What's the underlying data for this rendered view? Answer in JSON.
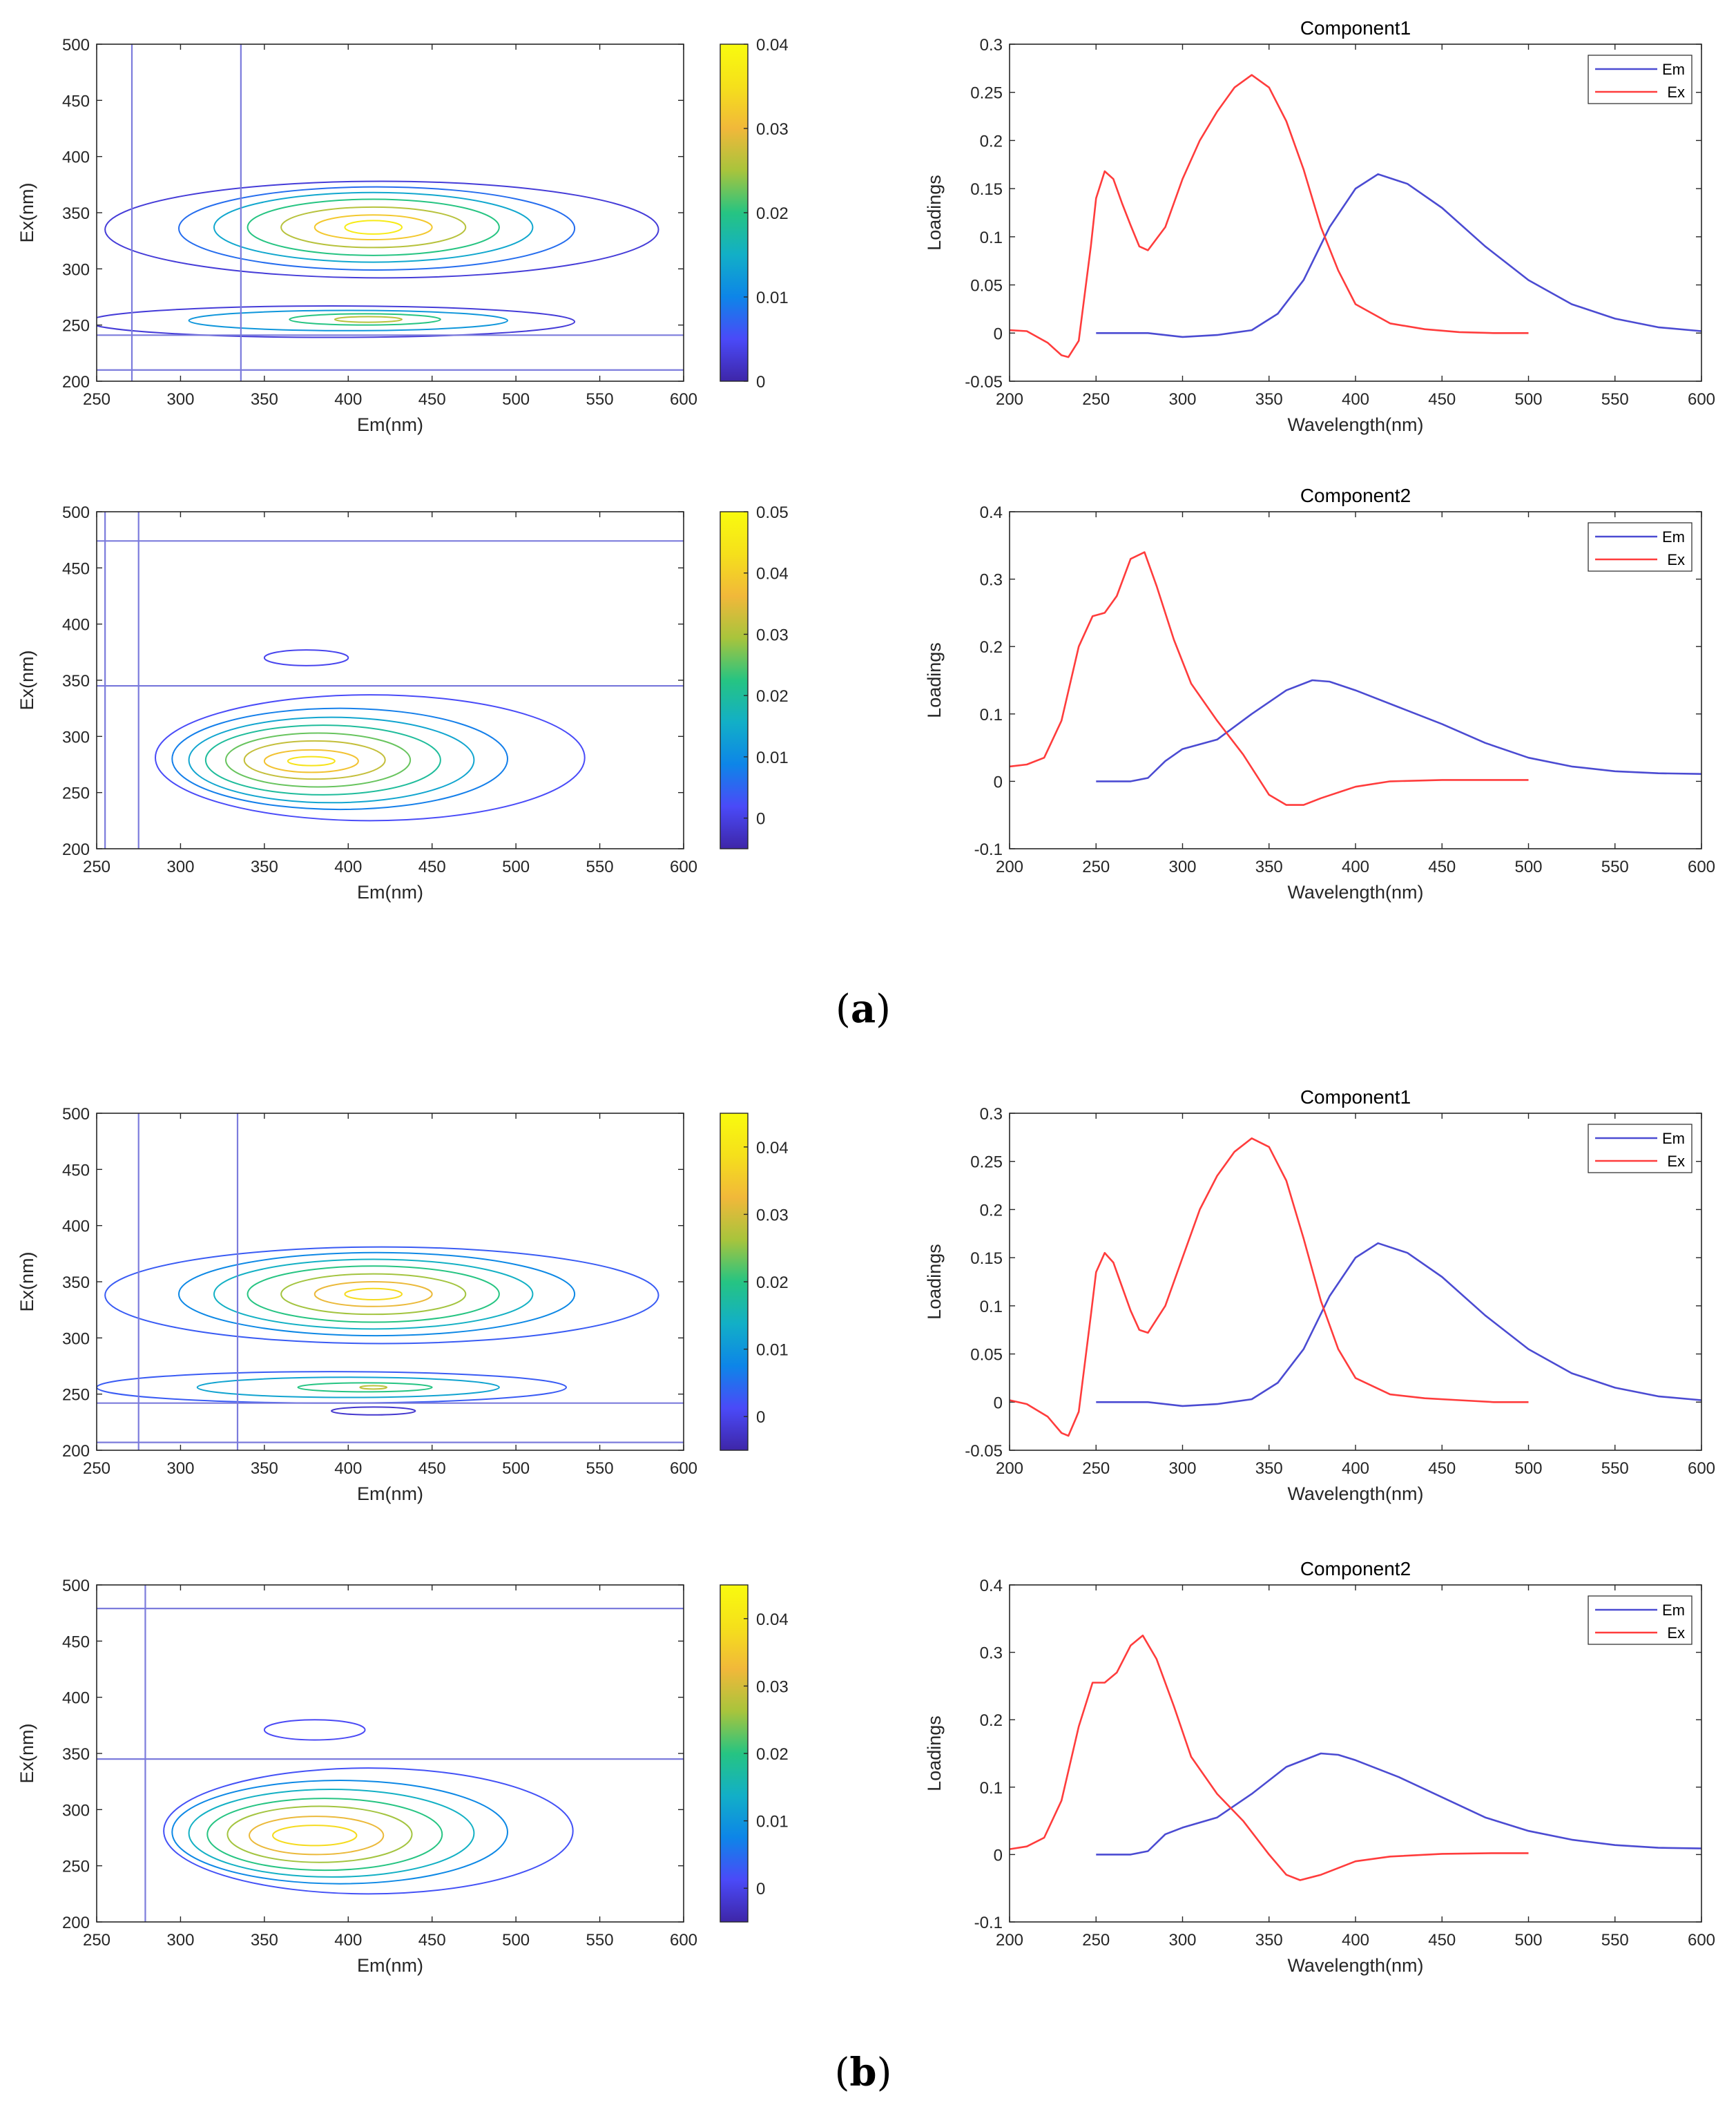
{
  "colors": {
    "em": "#4b4bd2",
    "ex": "#ff3c3c",
    "ref": "#7b7bdc",
    "axis": "#262626",
    "colormap": [
      "#3e26a8",
      "#4a4af8",
      "#0d85e8",
      "#12afc7",
      "#26c482",
      "#a8c43c",
      "#f1b83a",
      "#f5e01b",
      "#f9fb0e"
    ]
  },
  "captions": [
    "a",
    "b"
  ],
  "chart_data": [
    {
      "id": "a-map-1",
      "type": "heatmap",
      "xlabel": "Em(nm)",
      "ylabel": "Ex(nm)",
      "xlim": [
        250,
        600
      ],
      "ylim": [
        200,
        500
      ],
      "xticks": [
        250,
        300,
        350,
        400,
        450,
        500,
        550,
        600
      ],
      "yticks": [
        200,
        250,
        300,
        350,
        400,
        450,
        500
      ],
      "colorbar": {
        "min": 0,
        "max": 0.04,
        "ticks": [
          0,
          0.01,
          0.02,
          0.03,
          0.04
        ]
      },
      "ref_lines": {
        "vertical": [
          271,
          336
        ],
        "horizontal": [
          210,
          241
        ]
      },
      "contours": [
        {
          "cx": 420,
          "cy": 335,
          "rx": 165,
          "ry": 43,
          "level": 0.003
        },
        {
          "cx": 417,
          "cy": 336,
          "rx": 118,
          "ry": 37,
          "level": 0.008
        },
        {
          "cx": 415,
          "cy": 337,
          "rx": 95,
          "ry": 31,
          "level": 0.014
        },
        {
          "cx": 415,
          "cy": 337,
          "rx": 75,
          "ry": 25,
          "level": 0.02
        },
        {
          "cx": 415,
          "cy": 337,
          "rx": 55,
          "ry": 18,
          "level": 0.026
        },
        {
          "cx": 415,
          "cy": 337,
          "rx": 35,
          "ry": 11,
          "level": 0.032
        },
        {
          "cx": 415,
          "cy": 337,
          "rx": 17,
          "ry": 6,
          "level": 0.037
        },
        {
          "cx": 390,
          "cy": 253,
          "rx": 145,
          "ry": 14,
          "level": 0.003
        },
        {
          "cx": 400,
          "cy": 254,
          "rx": 95,
          "ry": 9,
          "level": 0.012
        },
        {
          "cx": 410,
          "cy": 255,
          "rx": 45,
          "ry": 5,
          "level": 0.02
        },
        {
          "cx": 412,
          "cy": 255,
          "rx": 20,
          "ry": 2.5,
          "level": 0.026
        }
      ]
    },
    {
      "id": "a-load-1",
      "type": "line",
      "title": "Component1",
      "xlabel": "Wavelength(nm)",
      "ylabel": "Loadings",
      "xlim": [
        200,
        600
      ],
      "ylim": [
        -0.05,
        0.3
      ],
      "xticks": [
        200,
        250,
        300,
        350,
        400,
        450,
        500,
        550,
        600
      ],
      "yticks": [
        -0.05,
        0,
        0.05,
        0.1,
        0.15,
        0.2,
        0.25,
        0.3
      ],
      "ytick_labels": [
        "-0.05",
        "0",
        "0.05",
        "0.1",
        "0.15",
        "0.2",
        "0.25",
        "0.3"
      ],
      "legend": [
        "Em",
        "Ex"
      ],
      "series": [
        {
          "name": "Em",
          "x": [
            250,
            280,
            300,
            320,
            340,
            355,
            370,
            385,
            400,
            413,
            430,
            450,
            475,
            500,
            525,
            550,
            575,
            600
          ],
          "y": [
            0,
            0,
            -0.004,
            -0.002,
            0.003,
            0.02,
            0.055,
            0.11,
            0.15,
            0.165,
            0.155,
            0.13,
            0.09,
            0.055,
            0.03,
            0.015,
            0.006,
            0.002
          ]
        },
        {
          "name": "Ex",
          "x": [
            200,
            210,
            222,
            230,
            234,
            240,
            247,
            250,
            255,
            260,
            265,
            270,
            275,
            280,
            290,
            300,
            310,
            320,
            330,
            340,
            350,
            360,
            370,
            380,
            390,
            400,
            420,
            440,
            460,
            480,
            500
          ],
          "y": [
            0.003,
            0.002,
            -0.01,
            -0.023,
            -0.025,
            -0.008,
            0.09,
            0.14,
            0.168,
            0.16,
            0.135,
            0.112,
            0.09,
            0.086,
            0.11,
            0.16,
            0.2,
            0.23,
            0.255,
            0.268,
            0.255,
            0.22,
            0.17,
            0.11,
            0.065,
            0.03,
            0.01,
            0.004,
            0.001,
            0,
            0
          ]
        }
      ]
    },
    {
      "id": "a-map-2",
      "type": "heatmap",
      "xlabel": "Em(nm)",
      "ylabel": "Ex(nm)",
      "xlim": [
        250,
        600
      ],
      "ylim": [
        200,
        500
      ],
      "xticks": [
        250,
        300,
        350,
        400,
        450,
        500,
        550,
        600
      ],
      "yticks": [
        200,
        250,
        300,
        350,
        400,
        450,
        500
      ],
      "colorbar": {
        "min": -0.005,
        "max": 0.05,
        "ticks": [
          0,
          0.01,
          0.02,
          0.03,
          0.04,
          0.05
        ]
      },
      "ref_lines": {
        "vertical": [
          255,
          275
        ],
        "horizontal": [
          345,
          474
        ]
      },
      "contours": [
        {
          "cx": 413,
          "cy": 281,
          "rx": 128,
          "ry": 56,
          "level": 0.002
        },
        {
          "cx": 395,
          "cy": 280,
          "rx": 100,
          "ry": 45,
          "level": 0.008
        },
        {
          "cx": 390,
          "cy": 279,
          "rx": 85,
          "ry": 38,
          "level": 0.014
        },
        {
          "cx": 385,
          "cy": 279,
          "rx": 70,
          "ry": 31,
          "level": 0.02
        },
        {
          "cx": 382,
          "cy": 279,
          "rx": 55,
          "ry": 24,
          "level": 0.026
        },
        {
          "cx": 380,
          "cy": 279,
          "rx": 42,
          "ry": 17,
          "level": 0.032
        },
        {
          "cx": 378,
          "cy": 278,
          "rx": 28,
          "ry": 10,
          "level": 0.038
        },
        {
          "cx": 378,
          "cy": 278,
          "rx": 14,
          "ry": 4,
          "level": 0.044
        },
        {
          "cx": 375,
          "cy": 370,
          "rx": 25,
          "ry": 7,
          "level": 0.001
        }
      ]
    },
    {
      "id": "a-load-2",
      "type": "line",
      "title": "Component2",
      "xlabel": "Wavelength(nm)",
      "ylabel": "Loadings",
      "xlim": [
        200,
        600
      ],
      "ylim": [
        -0.1,
        0.4
      ],
      "xticks": [
        200,
        250,
        300,
        350,
        400,
        450,
        500,
        550,
        600
      ],
      "yticks": [
        -0.1,
        0,
        0.1,
        0.2,
        0.3,
        0.4
      ],
      "ytick_labels": [
        "-0.1",
        "0",
        "0.1",
        "0.2",
        "0.3",
        "0.4"
      ],
      "legend": [
        "Em",
        "Ex"
      ],
      "series": [
        {
          "name": "Em",
          "x": [
            250,
            270,
            280,
            290,
            300,
            320,
            340,
            360,
            375,
            385,
            400,
            425,
            450,
            475,
            500,
            525,
            550,
            575,
            600
          ],
          "y": [
            0,
            0,
            0.005,
            0.03,
            0.048,
            0.062,
            0.1,
            0.135,
            0.15,
            0.148,
            0.135,
            0.11,
            0.085,
            0.057,
            0.035,
            0.022,
            0.015,
            0.012,
            0.011
          ]
        },
        {
          "name": "Ex",
          "x": [
            200,
            210,
            220,
            230,
            240,
            248,
            255,
            262,
            270,
            278,
            285,
            295,
            305,
            320,
            335,
            350,
            360,
            370,
            380,
            400,
            420,
            450,
            480,
            500
          ],
          "y": [
            0.022,
            0.025,
            0.035,
            0.09,
            0.2,
            0.245,
            0.25,
            0.275,
            0.33,
            0.34,
            0.29,
            0.21,
            0.145,
            0.09,
            0.04,
            -0.02,
            -0.035,
            -0.035,
            -0.025,
            -0.008,
            0,
            0.002,
            0.002,
            0.002
          ]
        }
      ]
    },
    {
      "id": "b-map-1",
      "type": "heatmap",
      "xlabel": "Em(nm)",
      "ylabel": "Ex(nm)",
      "xlim": [
        250,
        600
      ],
      "ylim": [
        200,
        500
      ],
      "xticks": [
        250,
        300,
        350,
        400,
        450,
        500,
        550,
        600
      ],
      "yticks": [
        200,
        250,
        300,
        350,
        400,
        450,
        500
      ],
      "colorbar": {
        "min": -0.005,
        "max": 0.045,
        "ticks": [
          0,
          0.01,
          0.02,
          0.03,
          0.04
        ]
      },
      "ref_lines": {
        "vertical": [
          275,
          334
        ],
        "horizontal": [
          207,
          242
        ]
      },
      "contours": [
        {
          "cx": 420,
          "cy": 338,
          "rx": 165,
          "ry": 43,
          "level": 0.003
        },
        {
          "cx": 417,
          "cy": 339,
          "rx": 118,
          "ry": 37,
          "level": 0.008
        },
        {
          "cx": 415,
          "cy": 339,
          "rx": 95,
          "ry": 31,
          "level": 0.014
        },
        {
          "cx": 415,
          "cy": 339,
          "rx": 75,
          "ry": 25,
          "level": 0.02
        },
        {
          "cx": 415,
          "cy": 339,
          "rx": 55,
          "ry": 18,
          "level": 0.026
        },
        {
          "cx": 415,
          "cy": 339,
          "rx": 35,
          "ry": 11,
          "level": 0.032
        },
        {
          "cx": 415,
          "cy": 339,
          "rx": 17,
          "ry": 5,
          "level": 0.038
        },
        {
          "cx": 390,
          "cy": 256,
          "rx": 140,
          "ry": 14,
          "level": 0.003
        },
        {
          "cx": 400,
          "cy": 256,
          "rx": 90,
          "ry": 9,
          "level": 0.012
        },
        {
          "cx": 410,
          "cy": 256,
          "rx": 40,
          "ry": 4,
          "level": 0.02
        },
        {
          "cx": 415,
          "cy": 256,
          "rx": 8,
          "ry": 1.5,
          "level": 0.028
        },
        {
          "cx": 415,
          "cy": 235,
          "rx": 25,
          "ry": 3.5,
          "level": -0.002
        }
      ]
    },
    {
      "id": "b-load-1",
      "type": "line",
      "title": "Component1",
      "xlabel": "Wavelength(nm)",
      "ylabel": "Loadings",
      "xlim": [
        200,
        600
      ],
      "ylim": [
        -0.05,
        0.3
      ],
      "xticks": [
        200,
        250,
        300,
        350,
        400,
        450,
        500,
        550,
        600
      ],
      "yticks": [
        -0.05,
        0,
        0.05,
        0.1,
        0.15,
        0.2,
        0.25,
        0.3
      ],
      "ytick_labels": [
        "-0.05",
        "0",
        "0.05",
        "0.1",
        "0.15",
        "0.2",
        "0.25",
        "0.3"
      ],
      "legend": [
        "Em",
        "Ex"
      ],
      "series": [
        {
          "name": "Em",
          "x": [
            250,
            280,
            300,
            320,
            340,
            355,
            370,
            385,
            400,
            413,
            430,
            450,
            475,
            500,
            525,
            550,
            575,
            600
          ],
          "y": [
            0,
            0,
            -0.004,
            -0.002,
            0.003,
            0.02,
            0.055,
            0.11,
            0.15,
            0.165,
            0.155,
            0.13,
            0.09,
            0.055,
            0.03,
            0.015,
            0.006,
            0.002
          ]
        },
        {
          "name": "Ex",
          "x": [
            200,
            210,
            222,
            230,
            234,
            240,
            247,
            250,
            255,
            260,
            265,
            270,
            275,
            280,
            290,
            300,
            310,
            320,
            330,
            340,
            350,
            360,
            370,
            380,
            390,
            400,
            420,
            440,
            460,
            480,
            500
          ],
          "y": [
            0.002,
            -0.002,
            -0.015,
            -0.032,
            -0.035,
            -0.01,
            0.09,
            0.135,
            0.155,
            0.145,
            0.12,
            0.095,
            0.075,
            0.072,
            0.1,
            0.15,
            0.2,
            0.235,
            0.26,
            0.274,
            0.265,
            0.23,
            0.17,
            0.105,
            0.055,
            0.025,
            0.008,
            0.004,
            0.002,
            0,
            0
          ]
        }
      ]
    },
    {
      "id": "b-map-2",
      "type": "heatmap",
      "xlabel": "Em(nm)",
      "ylabel": "Ex(nm)",
      "xlim": [
        250,
        600
      ],
      "ylim": [
        200,
        500
      ],
      "xticks": [
        250,
        300,
        350,
        400,
        450,
        500,
        550,
        600
      ],
      "yticks": [
        200,
        250,
        300,
        350,
        400,
        450,
        500
      ],
      "colorbar": {
        "min": -0.005,
        "max": 0.045,
        "ticks": [
          0,
          0.01,
          0.02,
          0.03,
          0.04
        ]
      },
      "ref_lines": {
        "vertical": [
          279
        ],
        "horizontal": [
          345,
          479
        ]
      },
      "contours": [
        {
          "cx": 412,
          "cy": 281,
          "rx": 122,
          "ry": 56,
          "level": 0.002
        },
        {
          "cx": 395,
          "cy": 280,
          "rx": 100,
          "ry": 46,
          "level": 0.008
        },
        {
          "cx": 390,
          "cy": 279,
          "rx": 85,
          "ry": 39,
          "level": 0.014
        },
        {
          "cx": 386,
          "cy": 278,
          "rx": 70,
          "ry": 32,
          "level": 0.02
        },
        {
          "cx": 383,
          "cy": 278,
          "rx": 55,
          "ry": 25,
          "level": 0.026
        },
        {
          "cx": 381,
          "cy": 277,
          "rx": 40,
          "ry": 17,
          "level": 0.032
        },
        {
          "cx": 380,
          "cy": 277,
          "rx": 25,
          "ry": 9,
          "level": 0.038
        },
        {
          "cx": 380,
          "cy": 371,
          "rx": 30,
          "ry": 9,
          "level": 0.001
        }
      ]
    },
    {
      "id": "b-load-2",
      "type": "line",
      "title": "Component2",
      "xlabel": "Wavelength(nm)",
      "ylabel": "Loadings",
      "xlim": [
        200,
        600
      ],
      "ylim": [
        -0.1,
        0.4
      ],
      "xticks": [
        200,
        250,
        300,
        350,
        400,
        450,
        500,
        550,
        600
      ],
      "yticks": [
        -0.1,
        0,
        0.1,
        0.2,
        0.3,
        0.4
      ],
      "ytick_labels": [
        "-0.1",
        "0",
        "0.1",
        "0.2",
        "0.3",
        "0.4"
      ],
      "legend": [
        "Em",
        "Ex"
      ],
      "series": [
        {
          "name": "Em",
          "x": [
            250,
            270,
            280,
            290,
            300,
            320,
            340,
            360,
            380,
            390,
            400,
            425,
            450,
            475,
            500,
            525,
            550,
            575,
            600
          ],
          "y": [
            0,
            0,
            0.005,
            0.03,
            0.04,
            0.055,
            0.09,
            0.13,
            0.15,
            0.148,
            0.14,
            0.115,
            0.085,
            0.055,
            0.035,
            0.022,
            0.014,
            0.01,
            0.009
          ]
        },
        {
          "name": "Ex",
          "x": [
            200,
            210,
            220,
            230,
            240,
            248,
            255,
            262,
            270,
            277,
            285,
            295,
            305,
            320,
            335,
            350,
            360,
            368,
            380,
            400,
            420,
            450,
            480,
            500
          ],
          "y": [
            0.008,
            0.012,
            0.025,
            0.08,
            0.19,
            0.255,
            0.255,
            0.27,
            0.31,
            0.325,
            0.29,
            0.22,
            0.145,
            0.09,
            0.05,
            0,
            -0.03,
            -0.038,
            -0.03,
            -0.01,
            -0.003,
            0.001,
            0.002,
            0.002
          ]
        }
      ]
    }
  ]
}
